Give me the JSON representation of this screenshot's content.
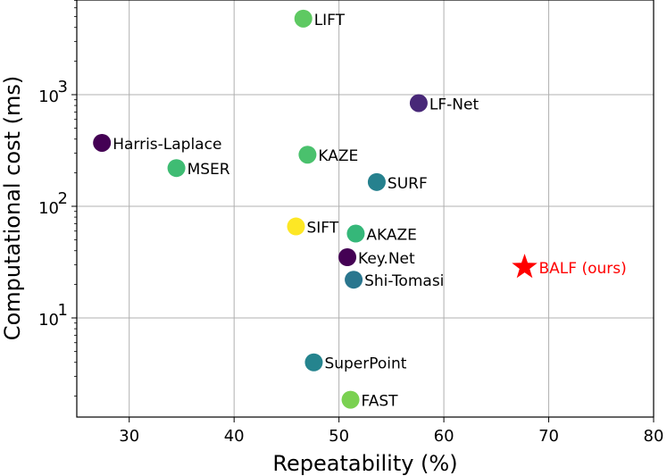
{
  "chart_data": {
    "type": "scatter",
    "xlabel": "Repeatability (%)",
    "ylabel": "Computational cost (ms)",
    "xlim": [
      25,
      80
    ],
    "ylim": [
      1.2,
      7000
    ],
    "yscale": "log",
    "grid": true,
    "x_ticks": [
      "30",
      "40",
      "50",
      "60",
      "70",
      "80"
    ],
    "y_ticks": [
      {
        "base": "10",
        "exp": "1"
      },
      {
        "base": "10",
        "exp": "2"
      },
      {
        "base": "10",
        "exp": "3"
      }
    ],
    "points": [
      {
        "label": "LIFT",
        "x": 46.6,
        "y": 4800,
        "color": "#5ec962",
        "marker": "circle"
      },
      {
        "label": "LF-Net",
        "x": 57.6,
        "y": 840,
        "color": "#482878",
        "marker": "circle"
      },
      {
        "label": "Harris-Laplace",
        "x": 27.4,
        "y": 370,
        "color": "#440154",
        "marker": "circle"
      },
      {
        "label": "KAZE",
        "x": 47.0,
        "y": 290,
        "color": "#4ac16d",
        "marker": "circle"
      },
      {
        "label": "MSER",
        "x": 34.5,
        "y": 220,
        "color": "#3fbc73",
        "marker": "circle"
      },
      {
        "label": "SURF",
        "x": 53.6,
        "y": 165,
        "color": "#26818e",
        "marker": "circle"
      },
      {
        "label": "SIFT",
        "x": 45.9,
        "y": 66,
        "color": "#fde725",
        "marker": "circle"
      },
      {
        "label": "AKAZE",
        "x": 51.6,
        "y": 57,
        "color": "#35b779",
        "marker": "circle"
      },
      {
        "label": "Key.Net",
        "x": 50.8,
        "y": 35,
        "color": "#440154",
        "marker": "circle"
      },
      {
        "label": "Shi-Tomasi",
        "x": 51.4,
        "y": 22,
        "color": "#2a768e",
        "marker": "circle"
      },
      {
        "label": "BALF (ours)",
        "x": 67.7,
        "y": 28.5,
        "color": "#ff0000",
        "marker": "star"
      },
      {
        "label": "SuperPoint",
        "x": 47.6,
        "y": 4.0,
        "color": "#25848e",
        "marker": "circle"
      },
      {
        "label": "FAST",
        "x": 51.1,
        "y": 1.85,
        "color": "#7ad151",
        "marker": "circle"
      }
    ]
  }
}
